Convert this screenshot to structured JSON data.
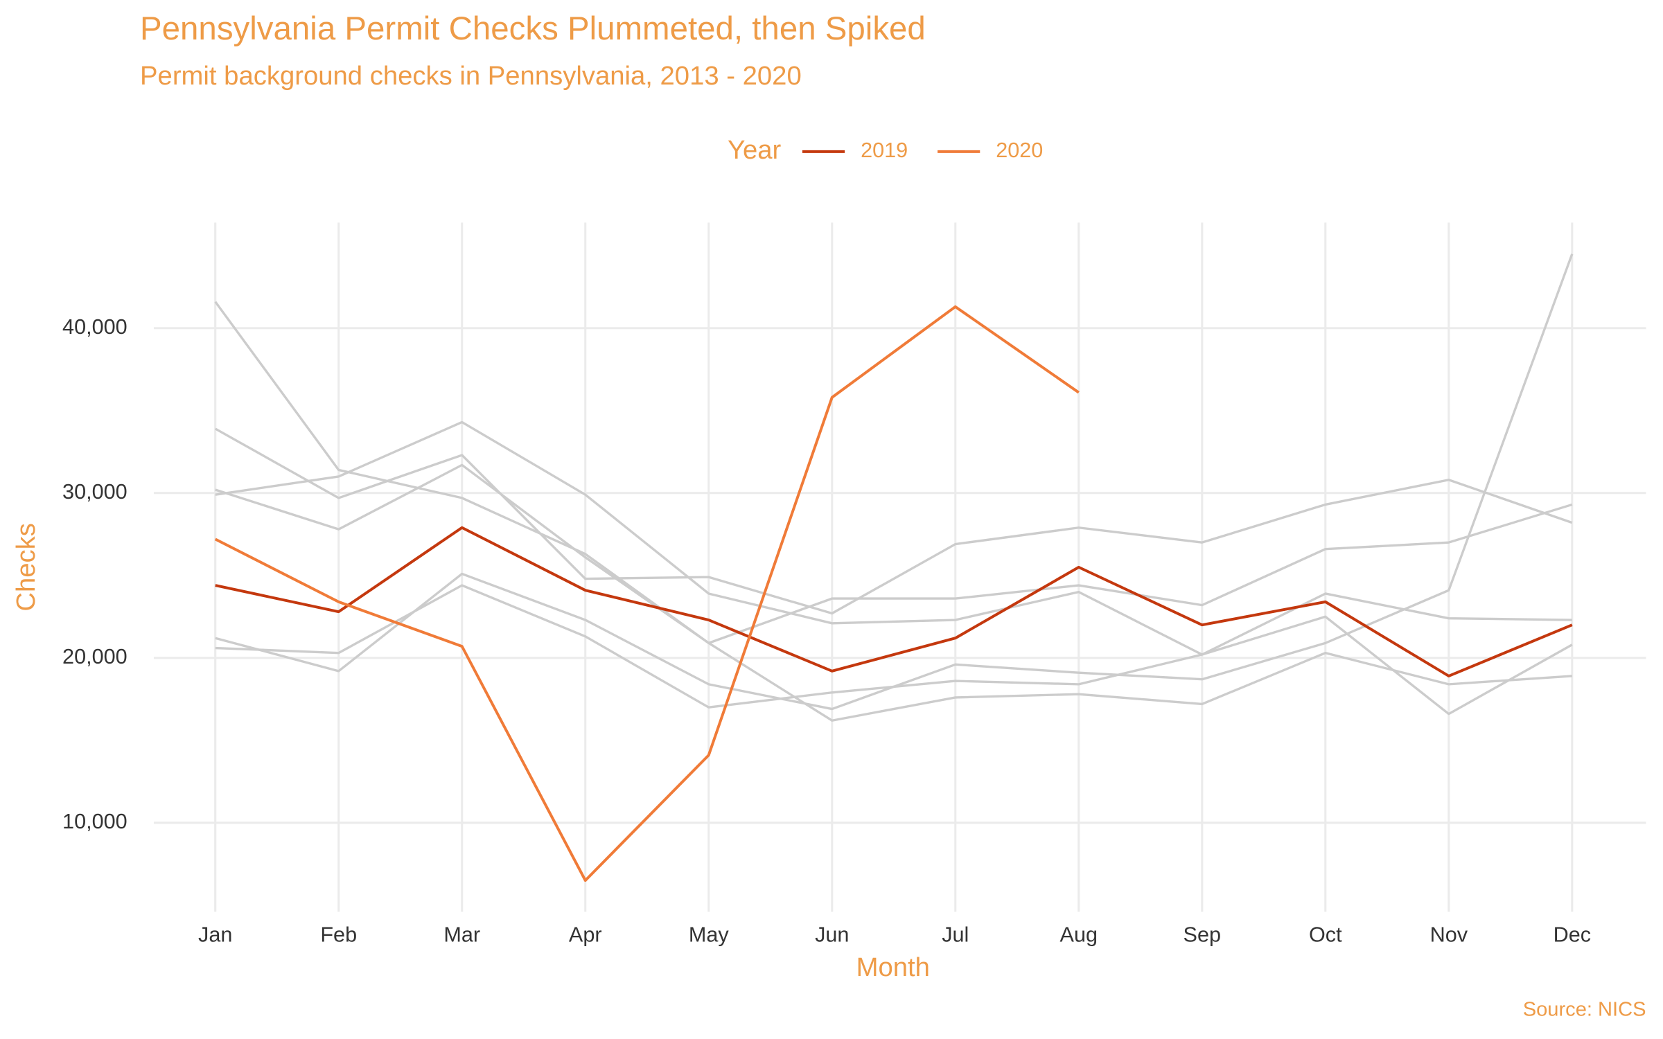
{
  "chart_data": {
    "type": "line",
    "title": "Pennsylvania Permit Checks Plummeted, then Spiked",
    "subtitle": "Permit background checks in Pennsylvania, 2013 - 2020",
    "legend_title": "Year",
    "x_label": "Month",
    "y_label": "Checks",
    "caption": "Source: NICS",
    "categories": [
      "Jan",
      "Feb",
      "Mar",
      "Apr",
      "May",
      "Jun",
      "Jul",
      "Aug",
      "Sep",
      "Oct",
      "Nov",
      "Dec"
    ],
    "ylim": [
      4600,
      46400
    ],
    "yticks": [
      {
        "value": 10000,
        "label": "10,000"
      },
      {
        "value": 20000,
        "label": "20,000"
      },
      {
        "value": 30000,
        "label": "30,000"
      },
      {
        "value": 40000,
        "label": "40,000"
      }
    ],
    "grid": true,
    "legend": "top",
    "series": [
      {
        "color": "#cccccc",
        "values": [
          41600,
          31400,
          29700,
          26300,
          20900,
          16200,
          17600,
          17800,
          17200,
          20300,
          18400,
          18900
        ]
      },
      {
        "color": "#cccccc",
        "values": [
          33900,
          29700,
          32300,
          24800,
          24900,
          22700,
          26900,
          27900,
          27000,
          29300,
          30800,
          28200
        ]
      },
      {
        "color": "#cccccc",
        "values": [
          29900,
          31000,
          34300,
          29900,
          23900,
          22100,
          22300,
          24000,
          20200,
          23900,
          22400,
          22300
        ]
      },
      {
        "color": "#cccccc",
        "values": [
          30200,
          27800,
          31700,
          26100,
          20900,
          23600,
          23600,
          24400,
          23200,
          26600,
          27000,
          29300
        ]
      },
      {
        "color": "#cccccc",
        "values": [
          21200,
          19200,
          25100,
          22300,
          18400,
          16900,
          19600,
          19100,
          18700,
          20900,
          24100,
          44500
        ]
      },
      {
        "color": "#cccccc",
        "values": [
          20600,
          20300,
          24400,
          21300,
          17000,
          17900,
          18600,
          18400,
          20200,
          22500,
          16600,
          20800
        ]
      },
      {
        "name": "2019",
        "color": "#c4380e",
        "values": [
          24400,
          22800,
          27900,
          24100,
          22300,
          19200,
          21200,
          25500,
          22000,
          23400,
          18900,
          22000
        ]
      },
      {
        "name": "2020",
        "color": "#f07b38",
        "values": [
          27200,
          23400,
          20700,
          6500,
          14100,
          35800,
          41300,
          36100,
          null,
          null,
          null,
          null
        ]
      }
    ]
  }
}
